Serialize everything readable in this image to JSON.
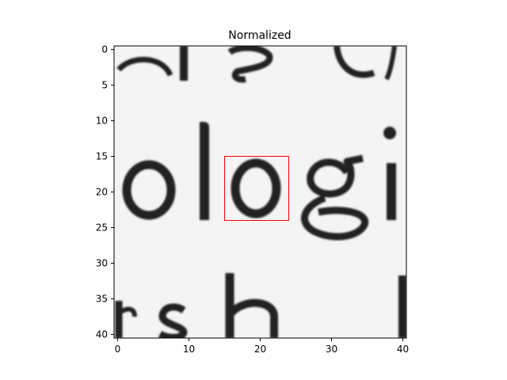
{
  "chart_data": {
    "type": "heatmap",
    "title": "Normalized",
    "colormap": "gray",
    "image_size": [
      41,
      41
    ],
    "xlim": [
      -0.5,
      40.5
    ],
    "ylim": [
      40.5,
      -0.5
    ],
    "x_ticks": [
      0,
      10,
      20,
      30,
      40
    ],
    "y_ticks": [
      0,
      5,
      10,
      15,
      20,
      25,
      30,
      35,
      40
    ],
    "x_tick_labels": [
      "0",
      "10",
      "20",
      "30",
      "40"
    ],
    "y_tick_labels": [
      "0",
      "5",
      "10",
      "15",
      "20",
      "25",
      "30",
      "35",
      "40"
    ],
    "highlight_box": {
      "x0": 15,
      "y0": 15,
      "x1": 24,
      "y1": 24,
      "color": "#ff0000"
    },
    "background_color": "#f4f4f4",
    "ink_color": "#222222"
  }
}
